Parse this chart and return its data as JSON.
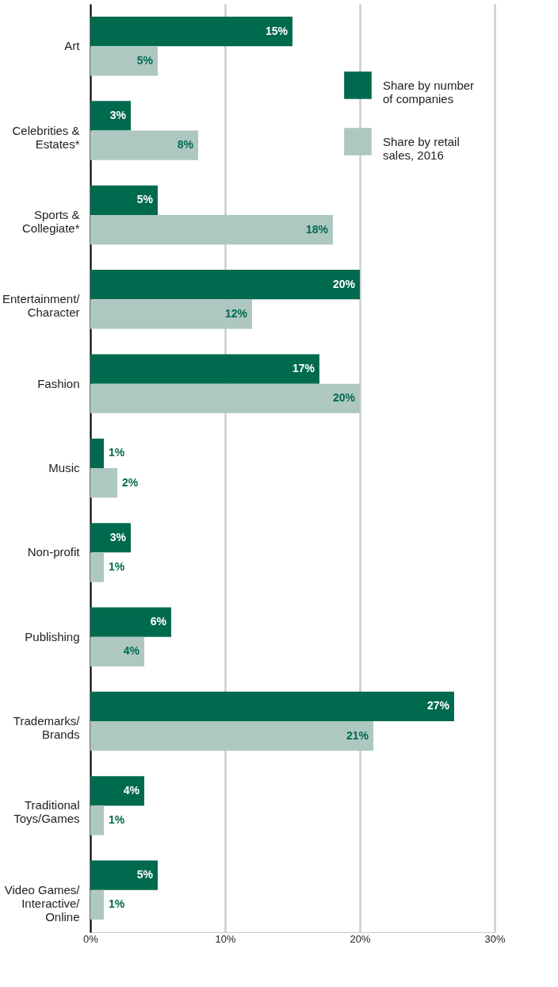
{
  "chart_data": {
    "type": "bar",
    "orientation": "horizontal",
    "categories": [
      "Art",
      "Celebrities & Estates*",
      "Sports & Collegiate*",
      "Entertainment/Character",
      "Fashion",
      "Music",
      "Non-profit",
      "Publishing",
      "Trademarks/Brands",
      "Traditional Toys/Games",
      "Video Games/Interactive/Online"
    ],
    "series": [
      {
        "name": "Share by number of companies",
        "color": "#006a4e",
        "values": [
          15,
          3,
          5,
          20,
          17,
          1,
          3,
          6,
          27,
          4,
          5
        ],
        "value_labels": [
          "15%",
          "3%",
          "5%",
          "20%",
          "17%",
          "1%",
          "3%",
          "6%",
          "27%",
          "4%",
          "5%"
        ]
      },
      {
        "name": "Share by retail sales, 2016",
        "color": "#aec8c1",
        "values": [
          5,
          8,
          18,
          12,
          20,
          2,
          1,
          4,
          21,
          1,
          1
        ],
        "value_labels": [
          "5%",
          "8%",
          "18%",
          "12%",
          "20%",
          "2%",
          "1%",
          "4%",
          "21%",
          "1%",
          "1%"
        ]
      }
    ],
    "xlim": [
      0,
      30
    ],
    "xticks": [
      {
        "value": 0,
        "label": "0%"
      },
      {
        "value": 10,
        "label": "10%"
      },
      {
        "value": 20,
        "label": "20%"
      },
      {
        "value": 30,
        "label": "30%"
      }
    ],
    "grid": "x",
    "legend": "top right"
  }
}
